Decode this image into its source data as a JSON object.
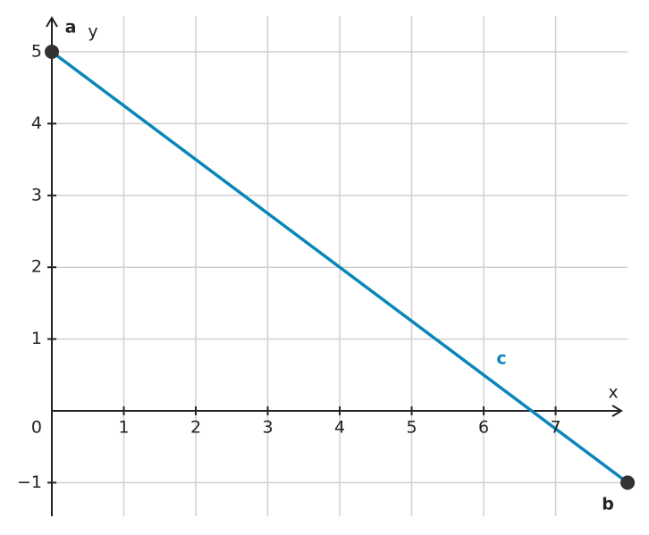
{
  "chart_data": {
    "type": "line",
    "x": [
      0,
      8
    ],
    "series": [
      {
        "name": "c",
        "color": "#0a86b8",
        "values": [
          5,
          -1
        ]
      }
    ],
    "point_labels": [
      "a",
      "b"
    ],
    "point_color": "#333333",
    "x_label": "x",
    "y_label": "y",
    "xlim": [
      0,
      7.9
    ],
    "ylim": [
      -1.5,
      5.5
    ],
    "xticks": [
      1,
      2,
      3,
      4,
      5,
      6,
      7
    ],
    "yticks": [
      {
        "value": -1,
        "label": "−1"
      },
      0,
      1,
      2,
      3,
      4,
      5
    ],
    "grid": true
  }
}
